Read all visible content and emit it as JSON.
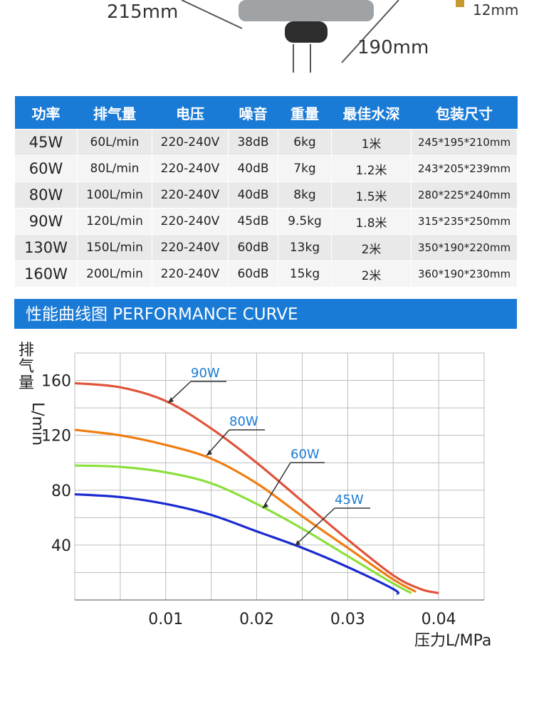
{
  "dimensions": {
    "width_label": "215mm",
    "depth_label": "190mm",
    "nozzle_label": "12mm"
  },
  "table": {
    "headers": [
      "功率",
      "排气量",
      "电压",
      "噪音",
      "重量",
      "最佳水深",
      "包装尺寸"
    ],
    "rows": [
      [
        "45W",
        "60L/min",
        "220-240V",
        "38dB",
        "6kg",
        "1米",
        "245*195*210mm"
      ],
      [
        "60W",
        "80L/min",
        "220-240V",
        "40dB",
        "7kg",
        "1.2米",
        "243*205*239mm"
      ],
      [
        "80W",
        "100L/min",
        "220-240V",
        "40dB",
        "8kg",
        "1.5米",
        "280*225*240mm"
      ],
      [
        "90W",
        "120L/min",
        "220-240V",
        "45dB",
        "9.5kg",
        "1.8米",
        "315*235*250mm"
      ],
      [
        "130W",
        "150L/min",
        "220-240V",
        "60dB",
        "13kg",
        "2米",
        "350*190*220mm"
      ],
      [
        "160W",
        "200L/min",
        "220-240V",
        "60dB",
        "15kg",
        "2米",
        "360*190*230mm"
      ]
    ]
  },
  "banner": {
    "title": "性能曲线图 PERFORMANCE CURVE"
  },
  "colors": {
    "accent": "#1a7bd6",
    "header_text": "#ffffff"
  },
  "chart_data": {
    "type": "line",
    "xlabel": "压力L/MPa",
    "ylabel": "排气量L/min",
    "xlim": [
      0,
      0.045
    ],
    "ylim": [
      0,
      180
    ],
    "xticks": [
      "0.01",
      "0.02",
      "0.03",
      "0.04"
    ],
    "yticks": [
      "40",
      "80",
      "120",
      "160"
    ],
    "grid": true,
    "series": [
      {
        "name": "90W",
        "color": "#e0533a",
        "x": [
          0,
          0.005,
          0.01,
          0.015,
          0.02,
          0.025,
          0.03,
          0.035,
          0.038,
          0.04
        ],
        "y": [
          158,
          155,
          145,
          125,
          100,
          72,
          44,
          18,
          8,
          5
        ]
      },
      {
        "name": "80W",
        "color": "#f07d10",
        "x": [
          0,
          0.005,
          0.01,
          0.015,
          0.02,
          0.025,
          0.03,
          0.035,
          0.0375
        ],
        "y": [
          124,
          120,
          113,
          103,
          85,
          61,
          38,
          15,
          6
        ]
      },
      {
        "name": "60W",
        "color": "#8ae03a",
        "x": [
          0,
          0.005,
          0.01,
          0.015,
          0.02,
          0.025,
          0.03,
          0.035,
          0.037
        ],
        "y": [
          98,
          97,
          93,
          85,
          70,
          52,
          32,
          12,
          5
        ]
      },
      {
        "name": "45W",
        "color": "#1a2ad0",
        "x": [
          0,
          0.005,
          0.01,
          0.015,
          0.02,
          0.025,
          0.03,
          0.035,
          0.0355
        ],
        "y": [
          77,
          75,
          70,
          62,
          50,
          38,
          24,
          8,
          4
        ]
      }
    ]
  }
}
